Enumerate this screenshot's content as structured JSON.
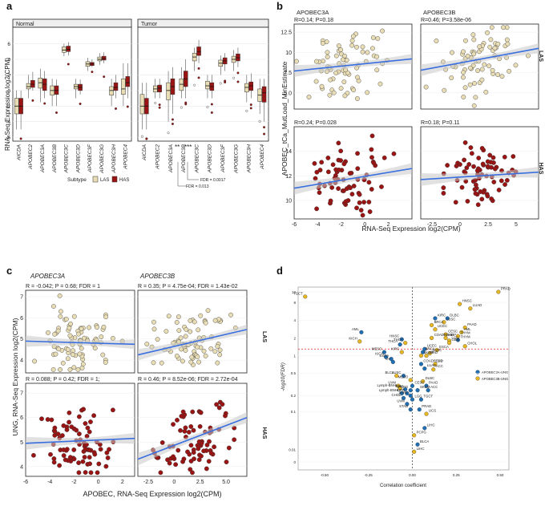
{
  "colors": {
    "las": "#e9ddb5",
    "has": "#9b1414",
    "fit": "#3a6fe0",
    "ci": "#c8c8c8",
    "redtext": "#e8262b",
    "blue": "#1f6fb4",
    "yellow": "#e6b722"
  },
  "panel_letters": [
    "a",
    "b",
    "c",
    "d"
  ],
  "chart_data": [
    {
      "id": "a",
      "type": "box",
      "ylabel": "RNA-Seq Expression log2(CPM)",
      "ylim": [
        -6.5,
        7.5
      ],
      "yticks": [
        -6,
        -4,
        -2,
        0,
        2,
        4,
        6
      ],
      "facets": [
        "Normal",
        "Tumor"
      ],
      "genes": [
        "AICDA",
        "APOBEC2",
        "APOBEC3A",
        "APOBEC3B",
        "APOBEC3C",
        "APOBEC3D",
        "APOBEC3F",
        "APOBEC3G",
        "APOBEC3H",
        "APOBEC4"
      ],
      "legend_title": "Subtype",
      "legend": [
        "LAS",
        "HAS"
      ],
      "sig_labels": [
        "**",
        "***"
      ],
      "fdr_labels": [
        "FDR = 0.0017",
        "FDR = 0.013"
      ],
      "boxes": {
        "Normal": {
          "LAS": [
            [
              -5,
              -3,
              -2,
              -1,
              0
            ],
            [
              -1,
              0.2,
              0.5,
              0.9,
              2
            ],
            [
              -1.5,
              0.3,
              1,
              1.6,
              2.8
            ],
            [
              -2,
              -0.6,
              0,
              0.6,
              1.5
            ],
            [
              4.4,
              4.9,
              5.2,
              5.6,
              6
            ],
            [
              -1,
              0.2,
              0.5,
              0.8,
              1.5
            ],
            [
              2.5,
              3.1,
              3.4,
              3.7,
              4.2
            ],
            [
              3.3,
              3.8,
              4,
              4.3,
              4.8
            ],
            [
              -2,
              -0.6,
              0,
              0.5,
              1.5
            ],
            [
              -2,
              -0.5,
              0.2,
              1.5,
              3.5
            ]
          ],
          "HAS": [
            [
              -5,
              -3,
              -2,
              -1,
              0
            ],
            [
              0,
              0.4,
              0.8,
              1.3,
              2.4
            ],
            [
              -1,
              0,
              0.8,
              1.5,
              2.5
            ],
            [
              -2,
              -0.5,
              0,
              0.6,
              1.4
            ],
            [
              4.5,
              5,
              5.3,
              5.7,
              6.2
            ],
            [
              -0.5,
              0,
              0.4,
              0.8,
              1.4
            ],
            [
              3,
              3.2,
              3.4,
              3.6,
              4
            ],
            [
              3.5,
              3.9,
              4.1,
              4.4,
              4.9
            ],
            [
              -1,
              0,
              0.4,
              1,
              2
            ],
            [
              -1,
              0.5,
              1,
              1.8,
              3.5
            ]
          ]
        },
        "Tumor": {
          "LAS": [
            [
              -5,
              -3,
              -2,
              -0.5,
              1
            ],
            [
              -1,
              -0.2,
              0.2,
              0.6,
              1.5
            ],
            [
              -4,
              -1.2,
              0,
              1,
              2.5
            ],
            [
              -1,
              0,
              0.8,
              1.5,
              3
            ],
            [
              2.5,
              3.8,
              4.3,
              4.8,
              5.5
            ],
            [
              -1,
              0.2,
              0.6,
              1.2,
              2
            ],
            [
              2,
              3.1,
              3.5,
              3.9,
              4.5
            ],
            [
              2.5,
              3.6,
              4,
              4.4,
              5.2
            ],
            [
              -1.5,
              -0.2,
              0.4,
              0.9,
              2
            ],
            [
              -3,
              -1.4,
              -0.6,
              0.2,
              1.5
            ]
          ],
          "HAS": [
            [
              -5,
              -3,
              -2,
              -1,
              1
            ],
            [
              -1,
              -0.2,
              0.3,
              0.7,
              1.5
            ],
            [
              -3,
              -0.5,
              0.5,
              1.5,
              3
            ],
            [
              -1,
              0.5,
              1.5,
              2.5,
              4
            ],
            [
              3.5,
              4.5,
              5,
              5.6,
              6.5
            ],
            [
              -1,
              0,
              0.5,
              1,
              2
            ],
            [
              2.5,
              3.4,
              3.8,
              4.2,
              4.8
            ],
            [
              3,
              3.8,
              4.2,
              4.7,
              5.5
            ],
            [
              -1,
              0,
              0.6,
              1.1,
              2.2
            ],
            [
              -4,
              -1.5,
              -0.3,
              0.5,
              1.5
            ]
          ]
        }
      }
    },
    {
      "id": "b",
      "type": "scatter",
      "ylabel": "APOBEC_tCa_MutLoad_MinEstimate",
      "xlabel": "RNA-Seq Expression log2(CPM)",
      "columns": [
        "APOBEC3A",
        "APOBEC3B"
      ],
      "rows": [
        "LAS",
        "HAS"
      ],
      "row_ylims": [
        [
          3,
          13.5
        ],
        [
          8.5,
          16
        ]
      ],
      "row_yticks": [
        [
          5.0,
          7.5,
          10.0,
          12.5
        ],
        [
          10,
          12,
          14
        ]
      ],
      "col_xlims": [
        [
          -6,
          4
        ],
        [
          -3.5,
          7
        ]
      ],
      "col_xticks": [
        [
          -6,
          -4,
          -2,
          0,
          2
        ],
        [
          -2.5,
          0.0,
          2.5,
          5.0
        ]
      ],
      "stats": [
        [
          "R=0.14; P=0.18",
          "R=0.46; P=3.58e-06"
        ],
        [
          "R=0.24; P=0.028",
          "R=0.18; P=0.11"
        ]
      ],
      "stats_red": [
        [
          false,
          true
        ],
        [
          true,
          false
        ]
      ],
      "fits": [
        [
          [
            -6,
            7.7,
            4,
            9.2
          ],
          [
            -3.5,
            7.8,
            7,
            10.5
          ]
        ],
        [
          [
            -6,
            11.0,
            4,
            12.6
          ],
          [
            -3.5,
            11.7,
            7,
            12.3
          ]
        ]
      ]
    },
    {
      "id": "c",
      "type": "scatter",
      "ylabel": "UNG, RNA-Seq Expression log2(CPM)",
      "xlabel": "APOBEC, RNA-Seq Expression log2(CPM)",
      "columns": [
        "APOBEC3A",
        "APOBEC3B"
      ],
      "rows": [
        "LAS",
        "HAS"
      ],
      "row_ylims": [
        [
          3.4,
          7.3
        ],
        [
          3.6,
          7.4
        ]
      ],
      "row_yticks": [
        [
          4,
          5,
          6,
          7
        ],
        [
          4,
          5,
          6,
          7
        ]
      ],
      "col_xlims": [
        [
          -6,
          3
        ],
        [
          -3.5,
          7
        ]
      ],
      "col_xticks": [
        [
          -6,
          -4,
          -2,
          0,
          2
        ],
        [
          -2.5,
          0.0,
          2.5,
          5.0
        ]
      ],
      "stats": [
        [
          "R = -0.042; P = 0.68; FDR = 1",
          "R = 0.35; P = 4.75e-04; FDR = 1.43e-02"
        ],
        [
          "R = 0.088; P = 0.42; FDR = 1;",
          "R = 0.46; P = 8.52e-06; FDR = 2.72e-04"
        ]
      ],
      "stats_red": [
        [
          false,
          true
        ],
        [
          false,
          true
        ]
      ],
      "fits": [
        [
          [
            -6,
            4.9,
            3,
            4.75
          ],
          [
            -3.5,
            4.25,
            7,
            5.45
          ]
        ],
        [
          [
            -6,
            4.95,
            3,
            5.15
          ],
          [
            -3.5,
            4.3,
            7,
            6.0
          ]
        ]
      ]
    },
    {
      "id": "d",
      "type": "scatter",
      "xlabel": "Correlation coefficient",
      "ylabel": "-log10(FDR)",
      "xlim": [
        -0.65,
        0.55
      ],
      "xticks": [
        -0.5,
        -0.25,
        0.0,
        0.25,
        0.5
      ],
      "yticks": [
        0,
        0.01,
        0.1,
        0.2,
        0.5,
        1,
        2,
        4,
        8,
        12
      ],
      "legend": [
        "APOBEC3A-UNG",
        "APOBEC3B-UNG"
      ],
      "points": [
        {
          "label": "PRAD",
          "x": 0.49,
          "y": 12,
          "s": 1
        },
        {
          "label": "TGCT",
          "x": -0.61,
          "y": 10,
          "s": 1
        },
        {
          "label": "HNSC",
          "x": 0.27,
          "y": 7.5,
          "s": 1
        },
        {
          "label": "LUAD",
          "x": 0.33,
          "y": 6.3,
          "s": 1
        },
        {
          "label": "KIRC",
          "x": 0.13,
          "y": 4.3,
          "s": 0
        },
        {
          "label": "DLBC",
          "x": 0.2,
          "y": 4.3,
          "s": 0
        },
        {
          "label": "LUSC",
          "x": 0.18,
          "y": 3.7,
          "s": 1
        },
        {
          "label": "BRCA",
          "x": 0.11,
          "y": 3.3,
          "s": 1
        },
        {
          "label": "PAAD",
          "x": 0.3,
          "y": 3.0,
          "s": 1
        },
        {
          "label": "UCEC",
          "x": 0.13,
          "y": 2.8,
          "s": 1
        },
        {
          "label": "AML",
          "x": -0.29,
          "y": 2.5,
          "s": 0
        },
        {
          "label": "AML",
          "x": 0.28,
          "y": 2.5,
          "s": 1
        },
        {
          "label": "CESC",
          "x": 0.19,
          "y": 2.3,
          "s": 1
        },
        {
          "label": "THYM",
          "x": 0.26,
          "y": 2.15,
          "s": 1
        },
        {
          "label": "COADREAD",
          "x": 0.11,
          "y": 2.0,
          "s": 1
        },
        {
          "label": "KIRP",
          "x": 0.19,
          "y": 2.0,
          "s": 1
        },
        {
          "label": "THYM",
          "x": 0.26,
          "y": 1.85,
          "s": 0
        },
        {
          "label": "LGG",
          "x": 0.21,
          "y": 1.8,
          "s": 1
        },
        {
          "label": "HNSC",
          "x": -0.06,
          "y": 1.9,
          "s": 0
        },
        {
          "label": "KICH",
          "x": -0.3,
          "y": 1.75,
          "s": 1
        },
        {
          "label": "THCA",
          "x": -0.04,
          "y": 1.65,
          "s": 1
        },
        {
          "label": "GBM",
          "x": 0.21,
          "y": 1.65,
          "s": 1
        },
        {
          "label": "THCA",
          "x": -0.07,
          "y": 1.55,
          "s": 0
        },
        {
          "label": "CHOL",
          "x": 0.3,
          "y": 1.45,
          "s": 1
        },
        {
          "label": "UCEC",
          "x": 0.07,
          "y": 1.3,
          "s": 0
        },
        {
          "label": "ESCA",
          "x": 0.14,
          "y": 1.25,
          "s": 1
        },
        {
          "label": "MESO",
          "x": -0.16,
          "y": 1.15,
          "s": 0
        },
        {
          "label": "KIRC",
          "x": -0.06,
          "y": 1.15,
          "s": 1
        },
        {
          "label": "BRCA",
          "x": 0.06,
          "y": 1.15,
          "s": 0
        },
        {
          "label": "SARC",
          "x": 0.1,
          "y": 1.1,
          "s": 1
        },
        {
          "label": "SKCM",
          "x": 0.05,
          "y": 1.0,
          "s": 1
        },
        {
          "label": "STAD",
          "x": 0.08,
          "y": 1.0,
          "s": 1
        },
        {
          "label": "KICH",
          "x": -0.15,
          "y": 0.95,
          "s": 0
        },
        {
          "label": "ESCA",
          "x": -0.12,
          "y": 0.88,
          "s": 0
        },
        {
          "label": "OV",
          "x": -0.11,
          "y": 0.78,
          "s": 0
        },
        {
          "label": "COADREAD",
          "x": 0.05,
          "y": 0.72,
          "s": 0
        },
        {
          "label": "OV",
          "x": 0.13,
          "y": 0.72,
          "s": 1
        },
        {
          "label": "LUAD",
          "x": 0.07,
          "y": 0.6,
          "s": 0
        },
        {
          "label": "ACC",
          "x": 0.12,
          "y": 0.58,
          "s": 1
        },
        {
          "label": "BLCA",
          "x": -0.09,
          "y": 0.45,
          "s": 1
        },
        {
          "label": "LUSC",
          "x": -0.05,
          "y": 0.45,
          "s": 0
        },
        {
          "label": "MESO",
          "x": -0.01,
          "y": 0.38,
          "s": 1
        },
        {
          "label": "DLBC",
          "x": 0.06,
          "y": 0.36,
          "s": 1
        },
        {
          "label": "UVM",
          "x": -0.08,
          "y": 0.3,
          "s": 1
        },
        {
          "label": "CESC",
          "x": 0.0,
          "y": 0.3,
          "s": 0
        },
        {
          "label": "PAAD",
          "x": 0.08,
          "y": 0.3,
          "s": 0
        },
        {
          "label": "Lymph-BNHL",
          "x": -0.07,
          "y": 0.27,
          "s": 1
        },
        {
          "label": "GBM",
          "x": -0.04,
          "y": 0.26,
          "s": 0
        },
        {
          "label": "PCPG",
          "x": -0.01,
          "y": 0.25,
          "s": 0
        },
        {
          "label": "SKCM",
          "x": 0.03,
          "y": 0.25,
          "s": 0
        },
        {
          "label": "ACC",
          "x": 0.09,
          "y": 0.25,
          "s": 0
        },
        {
          "label": "Lymph-BNHL",
          "x": -0.06,
          "y": 0.22,
          "s": 0
        },
        {
          "label": "KIRP",
          "x": -0.03,
          "y": 0.22,
          "s": 0
        },
        {
          "label": "SARC",
          "x": -0.01,
          "y": 0.2,
          "s": 0
        },
        {
          "label": "CHOL",
          "x": -0.05,
          "y": 0.18,
          "s": 0
        },
        {
          "label": "LGG",
          "x": 0.0,
          "y": 0.17,
          "s": 0
        },
        {
          "label": "TGCT",
          "x": 0.05,
          "y": 0.17,
          "s": 0
        },
        {
          "label": "UVM",
          "x": -0.03,
          "y": 0.14,
          "s": 0
        },
        {
          "label": "STAD",
          "x": -0.01,
          "y": 0.11,
          "s": 0
        },
        {
          "label": "PRAD",
          "x": 0.04,
          "y": 0.11,
          "s": 0
        },
        {
          "label": "UCS",
          "x": 0.08,
          "y": 0.09,
          "s": 1
        },
        {
          "label": "LIHC",
          "x": 0.07,
          "y": 0.045,
          "s": 0
        },
        {
          "label": "PCPG",
          "x": 0.01,
          "y": 0.03,
          "s": 1
        },
        {
          "label": "BLCA",
          "x": 0.03,
          "y": 0.016,
          "s": 0
        },
        {
          "label": "LIHC",
          "x": 0.01,
          "y": 0.008,
          "s": 1
        }
      ]
    }
  ]
}
